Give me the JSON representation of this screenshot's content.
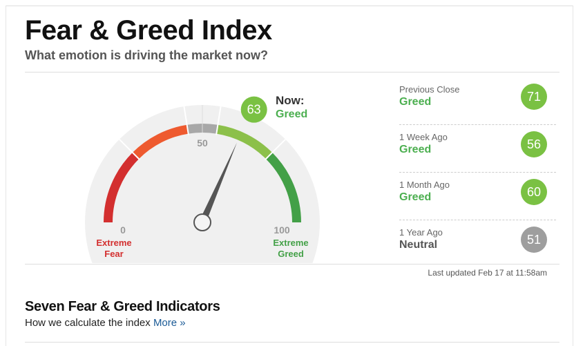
{
  "header": {
    "title": "Fear & Greed Index",
    "subtitle": "What emotion is driving the market now?"
  },
  "gauge": {
    "value": 63,
    "range": [
      0,
      100
    ],
    "ticks": [
      0,
      50,
      100
    ],
    "now_label": "Now:",
    "rating": "Greed",
    "rating_color": "#4caf50",
    "value_color": "#7ac143",
    "min_label": "Extreme Fear",
    "min_color": "#d32f2f",
    "max_label": "Extreme Greed",
    "max_color": "#43a047",
    "band_colors": [
      "#d32f2f",
      "#ee5a2f",
      "#a8a8a8",
      "#8cc04a",
      "#43a047"
    ]
  },
  "history": [
    {
      "label": "Previous Close",
      "rating": "Greed",
      "value": 71,
      "color": "#7ac143",
      "rating_color": "#4caf50"
    },
    {
      "label": "1 Week Ago",
      "rating": "Greed",
      "value": 56,
      "color": "#7ac143",
      "rating_color": "#4caf50"
    },
    {
      "label": "1 Month Ago",
      "rating": "Greed",
      "value": 60,
      "color": "#7ac143",
      "rating_color": "#4caf50"
    },
    {
      "label": "1 Year Ago",
      "rating": "Neutral",
      "value": 51,
      "color": "#9e9e9e",
      "rating_color": "#555555"
    }
  ],
  "last_updated": "Last updated Feb 17 at 11:58am",
  "indicators": {
    "title": "Seven Fear & Greed Indicators",
    "text": "How we calculate the index",
    "link": "More »"
  }
}
